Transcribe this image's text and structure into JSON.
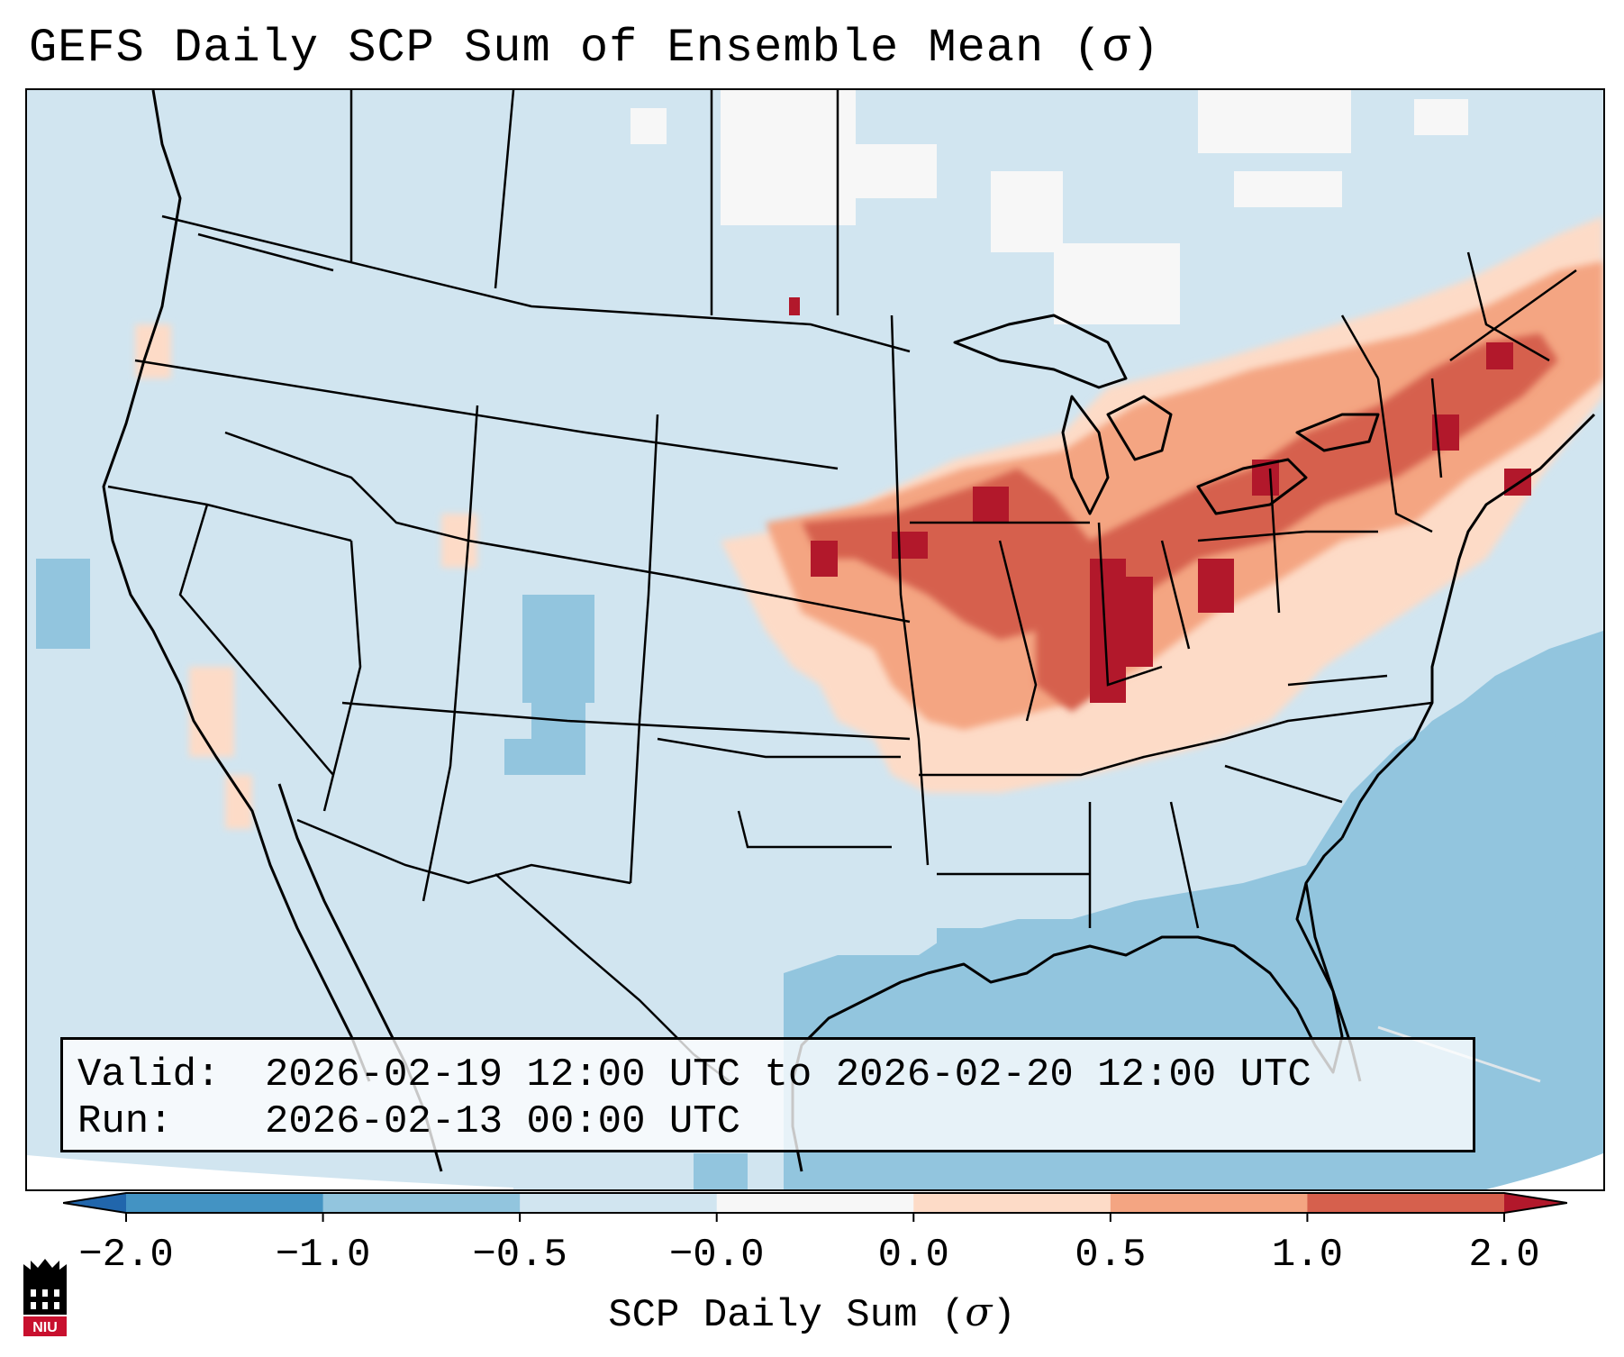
{
  "title": "GEFS Daily SCP Sum of Ensemble Mean (σ)",
  "validity": {
    "valid_label": "Valid:",
    "valid_value": "2026-02-19 12:00 UTC to 2026-02-20 12:00 UTC",
    "run_label": "Run:",
    "run_value": "2026-02-13 00:00 UTC"
  },
  "colorbar": {
    "label_text": "SCP Daily Sum (",
    "label_symbol": "σ",
    "label_close": ")",
    "ticks": [
      "−2.0",
      "−1.0",
      "−0.5",
      "−0.0",
      "0.0",
      "0.5",
      "1.0",
      "2.0"
    ],
    "bins": [
      {
        "from": -2.0,
        "to": -1.0,
        "color": "#4393c3"
      },
      {
        "from": -1.0,
        "to": -0.5,
        "color": "#92c5de"
      },
      {
        "from": -0.5,
        "to": -0.0,
        "color": "#d1e5f0"
      },
      {
        "from": -0.0,
        "to": 0.0,
        "color": "#f7f7f7"
      },
      {
        "from": 0.0,
        "to": 0.5,
        "color": "#fddbc7"
      },
      {
        "from": 0.5,
        "to": 1.0,
        "color": "#f4a582"
      },
      {
        "from": 1.0,
        "to": 2.0,
        "color": "#d6604d"
      }
    ],
    "under_color": "#2166ac",
    "over_color": "#b2182b"
  },
  "logo": {
    "text": "NIU",
    "color": "#c8102e"
  }
}
